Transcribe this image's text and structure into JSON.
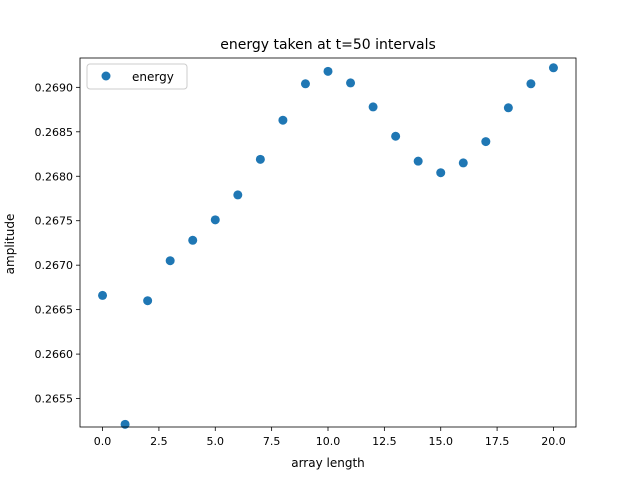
{
  "chart_data": {
    "type": "scatter",
    "title": "energy taken at t=50 intervals",
    "xlabel": "array length",
    "ylabel": "amplitude",
    "xlim": [
      -1.0,
      21.0
    ],
    "ylim": [
      0.26518,
      0.26933
    ],
    "xticks": [
      0.0,
      2.5,
      5.0,
      7.5,
      10.0,
      12.5,
      15.0,
      17.5,
      20.0
    ],
    "xtick_labels": [
      "0.0",
      "2.5",
      "5.0",
      "7.5",
      "10.0",
      "12.5",
      "15.0",
      "17.5",
      "20.0"
    ],
    "yticks": [
      0.2655,
      0.266,
      0.2665,
      0.267,
      0.2675,
      0.268,
      0.2685,
      0.269
    ],
    "ytick_labels": [
      "0.2655",
      "0.2660",
      "0.2665",
      "0.2670",
      "0.2675",
      "0.2680",
      "0.2685",
      "0.2690"
    ],
    "grid": false,
    "legend_position": "top-left",
    "series": [
      {
        "name": "energy",
        "color": "#1f77b4",
        "marker": "circle",
        "x": [
          0,
          1,
          2,
          3,
          4,
          5,
          6,
          7,
          8,
          9,
          10,
          11,
          12,
          13,
          14,
          15,
          16,
          17,
          18,
          19,
          20
        ],
        "y": [
          0.26666,
          0.26521,
          0.2666,
          0.26705,
          0.26728,
          0.26751,
          0.26779,
          0.26819,
          0.26863,
          0.26904,
          0.26918,
          0.26905,
          0.26878,
          0.26845,
          0.26817,
          0.26804,
          0.26815,
          0.26839,
          0.26877,
          0.26904,
          0.26922
        ]
      }
    ]
  }
}
